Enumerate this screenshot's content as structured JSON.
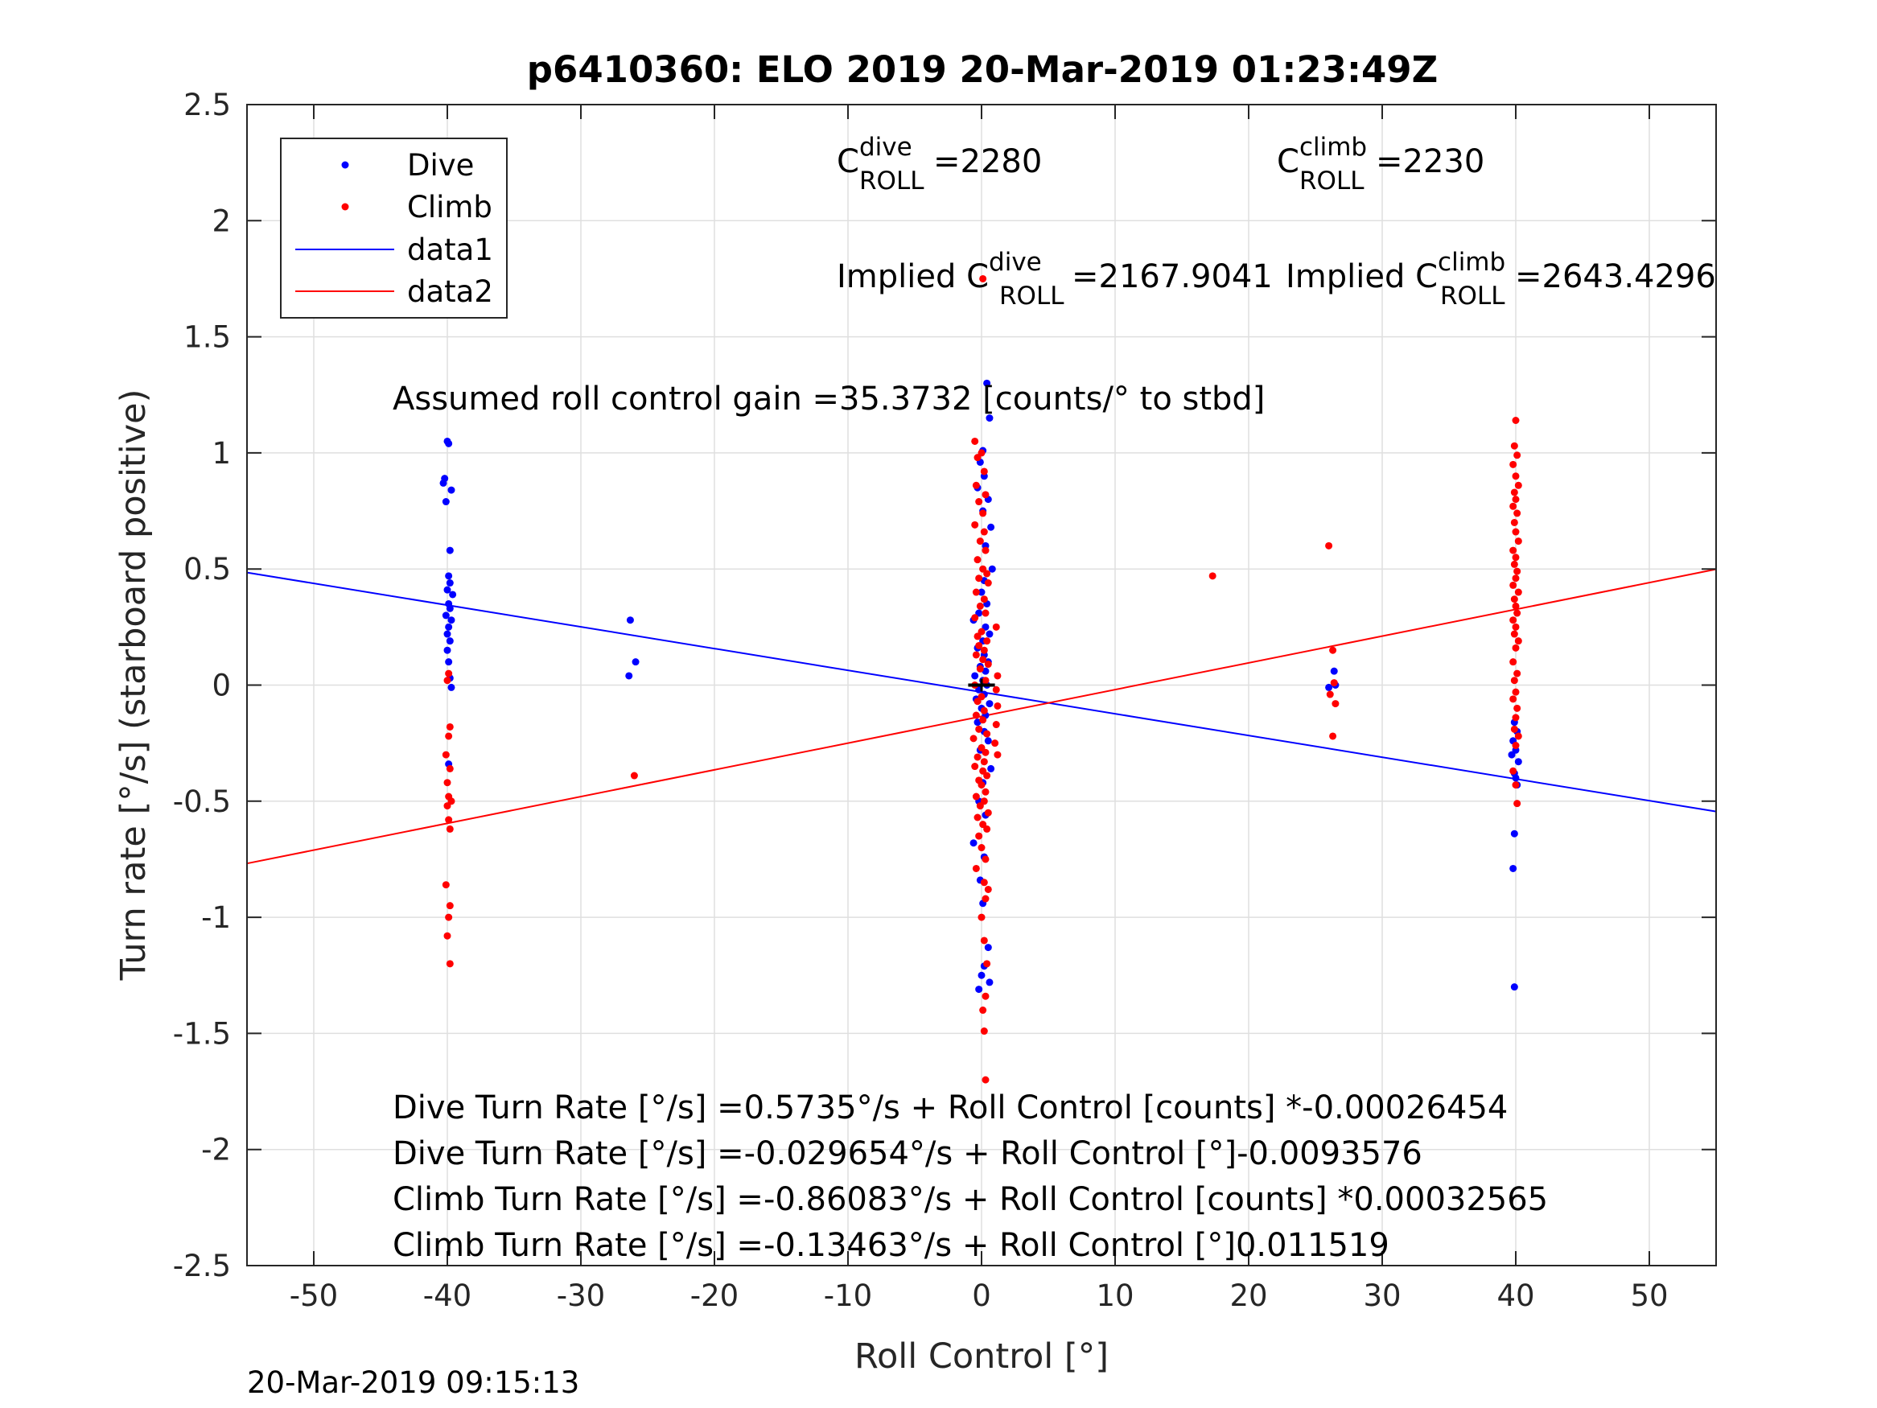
{
  "chart_data": {
    "type": "scatter",
    "title": "p6410360: ELO 2019 20-Mar-2019 01:23:49Z",
    "xlabel": "Roll Control [°]",
    "ylabel": "Turn rate [°/s] (starboard positive)",
    "xlim": [
      -55,
      55
    ],
    "ylim": [
      -2.5,
      2.5
    ],
    "xticks": [
      "-50",
      "-40",
      "-30",
      "-20",
      "-10",
      "0",
      "10",
      "20",
      "30",
      "40",
      "50"
    ],
    "yticks": [
      "2.5",
      "2",
      "1.5",
      "1",
      "0.5",
      "0",
      "-0.5",
      "-1",
      "-1.5",
      "-2",
      "-2.5"
    ],
    "grid": true,
    "legend_position": "top-left",
    "legend": [
      "Dive",
      "Climb",
      "data1",
      "data2"
    ],
    "series": [
      {
        "name": "Dive",
        "kind": "points",
        "color": "#0000ff",
        "points": [
          [
            -40.0,
            1.05
          ],
          [
            -39.9,
            1.04
          ],
          [
            -40.2,
            0.89
          ],
          [
            -40.3,
            0.87
          ],
          [
            -39.7,
            0.84
          ],
          [
            -40.1,
            0.79
          ],
          [
            -39.8,
            0.58
          ],
          [
            -39.9,
            0.47
          ],
          [
            -39.8,
            0.44
          ],
          [
            -40.0,
            0.41
          ],
          [
            -39.6,
            0.39
          ],
          [
            -39.9,
            0.35
          ],
          [
            -39.8,
            0.33
          ],
          [
            -40.1,
            0.3
          ],
          [
            -39.7,
            0.28
          ],
          [
            -39.9,
            0.25
          ],
          [
            -40.0,
            0.22
          ],
          [
            -39.8,
            0.19
          ],
          [
            -40.0,
            0.15
          ],
          [
            -39.9,
            0.1
          ],
          [
            -39.8,
            0.03
          ],
          [
            -39.7,
            -0.01
          ],
          [
            -39.9,
            -0.34
          ],
          [
            -26.3,
            0.28
          ],
          [
            -25.9,
            0.1
          ],
          [
            -26.4,
            0.04
          ],
          [
            0.4,
            1.3
          ],
          [
            0.6,
            1.15
          ],
          [
            0.1,
            1.01
          ],
          [
            -0.1,
            0.96
          ],
          [
            0.2,
            0.9
          ],
          [
            -0.3,
            0.85
          ],
          [
            0.5,
            0.8
          ],
          [
            0.1,
            0.75
          ],
          [
            0.7,
            0.68
          ],
          [
            0.3,
            0.6
          ],
          [
            0.8,
            0.5
          ],
          [
            0.2,
            0.45
          ],
          [
            0.0,
            0.4
          ],
          [
            0.4,
            0.35
          ],
          [
            -0.2,
            0.31
          ],
          [
            -0.6,
            0.28
          ],
          [
            0.3,
            0.25
          ],
          [
            0.6,
            0.22
          ],
          [
            0.1,
            0.19
          ],
          [
            -0.3,
            0.16
          ],
          [
            0.2,
            0.13
          ],
          [
            0.5,
            0.1
          ],
          [
            -0.1,
            0.08
          ],
          [
            0.3,
            0.06
          ],
          [
            -0.5,
            0.04
          ],
          [
            0.1,
            0.02
          ],
          [
            0.4,
            0.0
          ],
          [
            -0.2,
            -0.02
          ],
          [
            0.2,
            -0.04
          ],
          [
            -0.4,
            -0.06
          ],
          [
            0.6,
            -0.08
          ],
          [
            0.0,
            -0.1
          ],
          [
            0.3,
            -0.13
          ],
          [
            -0.3,
            -0.16
          ],
          [
            0.2,
            -0.2
          ],
          [
            0.5,
            -0.24
          ],
          [
            -0.1,
            -0.28
          ],
          [
            0.7,
            -0.36
          ],
          [
            0.1,
            -0.42
          ],
          [
            -0.2,
            -0.5
          ],
          [
            0.3,
            -0.56
          ],
          [
            -0.6,
            -0.68
          ],
          [
            0.2,
            -0.74
          ],
          [
            -0.1,
            -0.84
          ],
          [
            0.1,
            -0.94
          ],
          [
            0.5,
            -1.13
          ],
          [
            0.2,
            -1.21
          ],
          [
            0.0,
            -1.25
          ],
          [
            0.6,
            -1.28
          ],
          [
            -0.2,
            -1.31
          ],
          [
            26.0,
            -0.01
          ],
          [
            26.4,
            0.06
          ],
          [
            26.5,
            0.0
          ],
          [
            39.9,
            -0.16
          ],
          [
            40.1,
            -0.2
          ],
          [
            39.8,
            -0.24
          ],
          [
            40.0,
            -0.28
          ],
          [
            39.7,
            -0.3
          ],
          [
            40.2,
            -0.33
          ],
          [
            39.9,
            -0.38
          ],
          [
            40.0,
            -0.4
          ],
          [
            40.1,
            -0.43
          ],
          [
            39.9,
            -0.64
          ],
          [
            39.8,
            -0.79
          ],
          [
            39.9,
            -1.3
          ]
        ]
      },
      {
        "name": "Climb",
        "kind": "points",
        "color": "#ff0000",
        "points": [
          [
            -39.9,
            0.05
          ],
          [
            -40.0,
            0.02
          ],
          [
            -39.8,
            -0.18
          ],
          [
            -39.9,
            -0.22
          ],
          [
            -40.1,
            -0.3
          ],
          [
            -39.8,
            -0.36
          ],
          [
            -40.0,
            -0.42
          ],
          [
            -39.9,
            -0.48
          ],
          [
            -39.7,
            -0.5
          ],
          [
            -40.0,
            -0.52
          ],
          [
            -39.9,
            -0.58
          ],
          [
            -39.8,
            -0.62
          ],
          [
            -40.1,
            -0.86
          ],
          [
            -39.8,
            -0.95
          ],
          [
            -39.9,
            -1.0
          ],
          [
            -40.0,
            -1.08
          ],
          [
            -39.8,
            -1.2
          ],
          [
            -26.0,
            -0.39
          ],
          [
            -0.5,
            1.05
          ],
          [
            0.0,
            1.0
          ],
          [
            -0.3,
            0.98
          ],
          [
            0.2,
            0.92
          ],
          [
            -0.4,
            0.86
          ],
          [
            0.3,
            0.82
          ],
          [
            -0.2,
            0.79
          ],
          [
            0.1,
            0.74
          ],
          [
            -0.5,
            0.69
          ],
          [
            0.2,
            0.66
          ],
          [
            -0.1,
            0.62
          ],
          [
            0.3,
            0.58
          ],
          [
            -0.3,
            0.54
          ],
          [
            0.1,
            0.5
          ],
          [
            0.4,
            0.48
          ],
          [
            -0.2,
            0.46
          ],
          [
            0.5,
            0.44
          ],
          [
            -0.4,
            0.4
          ],
          [
            0.2,
            0.37
          ],
          [
            -0.1,
            0.34
          ],
          [
            0.3,
            0.31
          ],
          [
            -0.5,
            0.29
          ],
          [
            1.1,
            0.25
          ],
          [
            0.0,
            0.23
          ],
          [
            -0.3,
            0.21
          ],
          [
            0.4,
            0.19
          ],
          [
            -0.2,
            0.17
          ],
          [
            0.2,
            0.15
          ],
          [
            -0.4,
            0.13
          ],
          [
            0.1,
            0.11
          ],
          [
            0.5,
            0.09
          ],
          [
            -0.1,
            0.07
          ],
          [
            1.2,
            0.04
          ],
          [
            0.3,
            0.02
          ],
          [
            -0.5,
            0.0
          ],
          [
            1.1,
            -0.02
          ],
          [
            0.0,
            -0.05
          ],
          [
            -0.3,
            -0.07
          ],
          [
            1.2,
            -0.09
          ],
          [
            0.2,
            -0.11
          ],
          [
            -0.4,
            -0.13
          ],
          [
            0.1,
            -0.15
          ],
          [
            1.1,
            -0.17
          ],
          [
            -0.2,
            -0.19
          ],
          [
            0.4,
            -0.21
          ],
          [
            -0.6,
            -0.23
          ],
          [
            1.0,
            -0.25
          ],
          [
            0.0,
            -0.27
          ],
          [
            0.3,
            -0.29
          ],
          [
            -0.3,
            -0.31
          ],
          [
            1.2,
            -0.3
          ],
          [
            0.2,
            -0.33
          ],
          [
            -0.5,
            -0.35
          ],
          [
            0.1,
            -0.37
          ],
          [
            0.4,
            -0.39
          ],
          [
            -0.2,
            -0.41
          ],
          [
            0.0,
            -0.43
          ],
          [
            0.3,
            -0.46
          ],
          [
            -0.4,
            -0.48
          ],
          [
            0.2,
            -0.5
          ],
          [
            -0.1,
            -0.52
          ],
          [
            0.5,
            -0.55
          ],
          [
            -0.3,
            -0.57
          ],
          [
            0.1,
            -0.6
          ],
          [
            0.4,
            -0.62
          ],
          [
            -0.2,
            -0.65
          ],
          [
            0.0,
            -0.7
          ],
          [
            0.3,
            -0.75
          ],
          [
            -0.4,
            -0.79
          ],
          [
            0.2,
            -0.85
          ],
          [
            0.5,
            -0.88
          ],
          [
            0.3,
            -0.92
          ],
          [
            0.0,
            -1.0
          ],
          [
            0.2,
            -1.1
          ],
          [
            0.4,
            -1.2
          ],
          [
            0.3,
            -1.34
          ],
          [
            0.1,
            -1.4
          ],
          [
            0.2,
            -1.49
          ],
          [
            0.3,
            -1.7
          ],
          [
            0.1,
            1.75
          ],
          [
            17.3,
            0.47
          ],
          [
            26.0,
            0.6
          ],
          [
            26.3,
            0.15
          ],
          [
            26.4,
            0.01
          ],
          [
            26.1,
            -0.04
          ],
          [
            26.5,
            -0.08
          ],
          [
            26.3,
            -0.22
          ],
          [
            40.0,
            1.14
          ],
          [
            39.9,
            1.03
          ],
          [
            40.1,
            0.99
          ],
          [
            39.8,
            0.95
          ],
          [
            40.0,
            0.9
          ],
          [
            40.2,
            0.86
          ],
          [
            39.9,
            0.83
          ],
          [
            40.0,
            0.8
          ],
          [
            39.8,
            0.77
          ],
          [
            40.1,
            0.74
          ],
          [
            39.9,
            0.7
          ],
          [
            40.0,
            0.66
          ],
          [
            40.2,
            0.62
          ],
          [
            39.8,
            0.58
          ],
          [
            40.0,
            0.55
          ],
          [
            39.9,
            0.52
          ],
          [
            40.1,
            0.49
          ],
          [
            40.0,
            0.46
          ],
          [
            39.8,
            0.43
          ],
          [
            40.2,
            0.4
          ],
          [
            39.9,
            0.37
          ],
          [
            40.0,
            0.34
          ],
          [
            40.1,
            0.31
          ],
          [
            39.8,
            0.28
          ],
          [
            40.0,
            0.25
          ],
          [
            39.9,
            0.22
          ],
          [
            40.2,
            0.19
          ],
          [
            40.0,
            0.16
          ],
          [
            39.8,
            0.1
          ],
          [
            40.1,
            0.05
          ],
          [
            39.9,
            0.02
          ],
          [
            40.0,
            -0.03
          ],
          [
            39.8,
            -0.06
          ],
          [
            40.1,
            -0.1
          ],
          [
            40.0,
            -0.14
          ],
          [
            39.9,
            -0.19
          ],
          [
            40.2,
            -0.22
          ],
          [
            40.0,
            -0.26
          ],
          [
            39.8,
            -0.37
          ],
          [
            40.0,
            -0.43
          ],
          [
            40.1,
            -0.51
          ]
        ]
      },
      {
        "name": "data1",
        "kind": "line",
        "color": "#0000ff",
        "x": [
          -55,
          55
        ],
        "y": [
          0.4847,
          -0.5446
        ]
      },
      {
        "name": "data2",
        "kind": "line",
        "color": "#ff0000",
        "x": [
          -55,
          55
        ],
        "y": [
          -0.7682,
          0.4989
        ]
      }
    ],
    "marker": {
      "color": "#000000",
      "x": [
        -1,
        1
      ],
      "y": [
        0,
        0
      ]
    },
    "annotations": {
      "c_dive_main": "C",
      "c_dive_sup": "dive",
      "c_dive_sub": "ROLL",
      "c_dive_value": " =2280",
      "c_climb_main": "C",
      "c_climb_sup": "climb",
      "c_climb_sub": "ROLL",
      "c_climb_value": " =2230",
      "implied_dive_main": "Implied C",
      "implied_dive_sup": "dive",
      "implied_dive_sub": "ROLL",
      "implied_dive_value": " =2167.9041",
      "implied_climb_main": "Implied C",
      "implied_climb_sup": "climb",
      "implied_climb_sub": "ROLL",
      "implied_climb_value": " =2643.4296",
      "gain": "Assumed roll control gain =35.3732 [counts/° to stbd]",
      "eq1": "Dive Turn Rate [°/s] =0.5735°/s + Roll Control [counts] *-0.00026454",
      "eq2": "Dive Turn Rate [°/s] =-0.029654°/s + Roll Control [°]-0.0093576",
      "eq3": "Climb Turn Rate [°/s] =-0.86083°/s + Roll Control [counts] *0.00032565",
      "eq4": "Climb Turn Rate [°/s] =-0.13463°/s + Roll Control [°]0.011519"
    },
    "footer": "20-Mar-2019 09:15:13"
  }
}
